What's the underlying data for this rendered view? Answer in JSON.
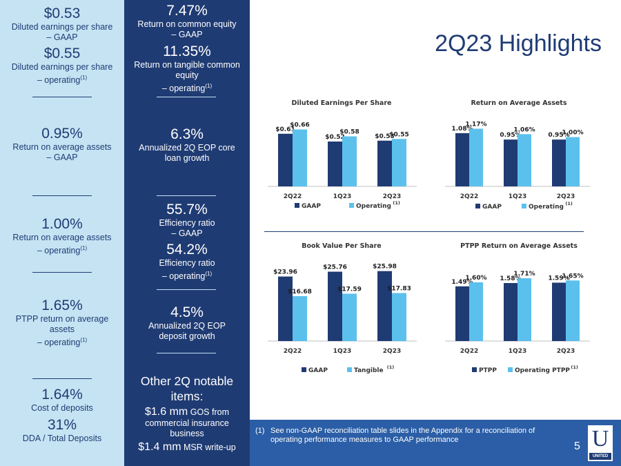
{
  "title": "2Q23 Highlights",
  "colors": {
    "navy": "#1f3b73",
    "light_blue": "#5cc0ec",
    "pale_blue": "#c5e3f3",
    "footer_blue": "#2b5ea6"
  },
  "left_metrics": [
    {
      "value": "$0.53",
      "label": "Diluted earnings per share",
      "label2": "– GAAP",
      "sup": ""
    },
    {
      "value": "$0.55",
      "label": "Diluted earnings per share",
      "label2": "– operating",
      "sup": "(1)"
    },
    {
      "value": "0.95%",
      "label": "Return on average assets",
      "label2": "– GAAP",
      "sup": ""
    },
    {
      "value": "1.00%",
      "label": "Return on average assets",
      "label2": "– operating",
      "sup": "(1)"
    },
    {
      "value": "1.65%",
      "label": "PTPP return on average",
      "label2": "assets",
      "label3": "– operating",
      "sup": "(1)"
    },
    {
      "value": "1.64%",
      "label": "Cost of deposits",
      "label2": "",
      "sup": ""
    },
    {
      "value": "31%",
      "label": "DDA / Total Deposits",
      "label2": "",
      "sup": ""
    }
  ],
  "mid_metrics": [
    {
      "value": "7.47%",
      "label": "Return on common equity",
      "label2": "– GAAP",
      "sup": ""
    },
    {
      "value": "11.35%",
      "label": "Return on tangible common",
      "label2": "equity",
      "label3": "– operating",
      "sup": "(1)"
    },
    {
      "value": "6.3%",
      "label": "Annualized 2Q EOP core",
      "label2": "loan growth",
      "sup": ""
    },
    {
      "value": "55.7%",
      "label": "Efficiency ratio",
      "label2": "– GAAP",
      "sup": ""
    },
    {
      "value": "54.2%",
      "label": "Efficiency ratio",
      "label2": "– operating",
      "sup": "(1)"
    },
    {
      "value": "4.5%",
      "label": "Annualized 2Q EOP",
      "label2": "deposit growth",
      "sup": ""
    }
  ],
  "notable": {
    "title1": "Other 2Q notable",
    "title2": "items:",
    "item1_big": "$1.6 mm",
    "item1_small": " GOS from",
    "item1_line2": "commercial insurance",
    "item1_line3": "business",
    "item2_big": "$1.4 mm",
    "item2_small": " MSR write-up"
  },
  "footnote": {
    "mark": "(1)",
    "text": "See non-GAAP reconciliation table slides in the Appendix for a reconciliation of operating performance measures to GAAP performance"
  },
  "page_number": "5",
  "logo_text": "UNITED",
  "chart_data": [
    {
      "type": "bar",
      "title": "Diluted Earnings Per Share",
      "categories": [
        "2Q22",
        "1Q23",
        "2Q23"
      ],
      "series": [
        {
          "name": "GAAP",
          "values": [
            0.61,
            0.52,
            0.53
          ],
          "labels": [
            "$0.61",
            "$0.52",
            "$0.53"
          ]
        },
        {
          "name": "Operating",
          "values": [
            0.66,
            0.58,
            0.55
          ],
          "labels": [
            "$0.66",
            "$0.58",
            "$0.55"
          ]
        }
      ],
      "legend_sup": "(1)",
      "legend": "bottom",
      "ylim": [
        0,
        0.8
      ]
    },
    {
      "type": "bar",
      "title": "Return on Average Assets",
      "categories": [
        "2Q22",
        "1Q23",
        "2Q23"
      ],
      "series": [
        {
          "name": "GAAP",
          "values": [
            1.08,
            0.95,
            0.95
          ],
          "labels": [
            "1.08%",
            "0.95%",
            "0.95%"
          ]
        },
        {
          "name": "Operating",
          "values": [
            1.17,
            1.06,
            1.0
          ],
          "labels": [
            "1.17%",
            "1.06%",
            "1.00%"
          ]
        }
      ],
      "legend_sup": "(1)",
      "legend": "bottom",
      "ylim": [
        0,
        1.4
      ]
    },
    {
      "type": "bar",
      "title": "Book Value Per Share",
      "categories": [
        "2Q22",
        "1Q23",
        "2Q23"
      ],
      "series": [
        {
          "name": "GAAP",
          "values": [
            23.96,
            25.76,
            25.98
          ],
          "labels": [
            "$23.96",
            "$25.76",
            "$25.98"
          ]
        },
        {
          "name": "Tangible",
          "values": [
            16.68,
            17.59,
            17.83
          ],
          "labels": [
            "$16.68",
            "$17.59",
            "$17.83"
          ]
        }
      ],
      "legend_sup": "(1)",
      "legend": "bottom",
      "ylim": [
        0,
        30
      ]
    },
    {
      "type": "bar",
      "title": "PTPP Return on Average Assets",
      "categories": [
        "2Q22",
        "1Q23",
        "2Q23"
      ],
      "series": [
        {
          "name": "PTPP",
          "values": [
            1.49,
            1.58,
            1.59
          ],
          "labels": [
            "1.49%",
            "1.58%",
            "1.59%"
          ]
        },
        {
          "name": "Operating PTPP",
          "values": [
            1.6,
            1.71,
            1.65
          ],
          "labels": [
            "1.60%",
            "1.71%",
            "1.65%"
          ]
        }
      ],
      "legend_sup": "(1)",
      "legend": "bottom",
      "ylim": [
        0,
        2.2
      ]
    }
  ]
}
